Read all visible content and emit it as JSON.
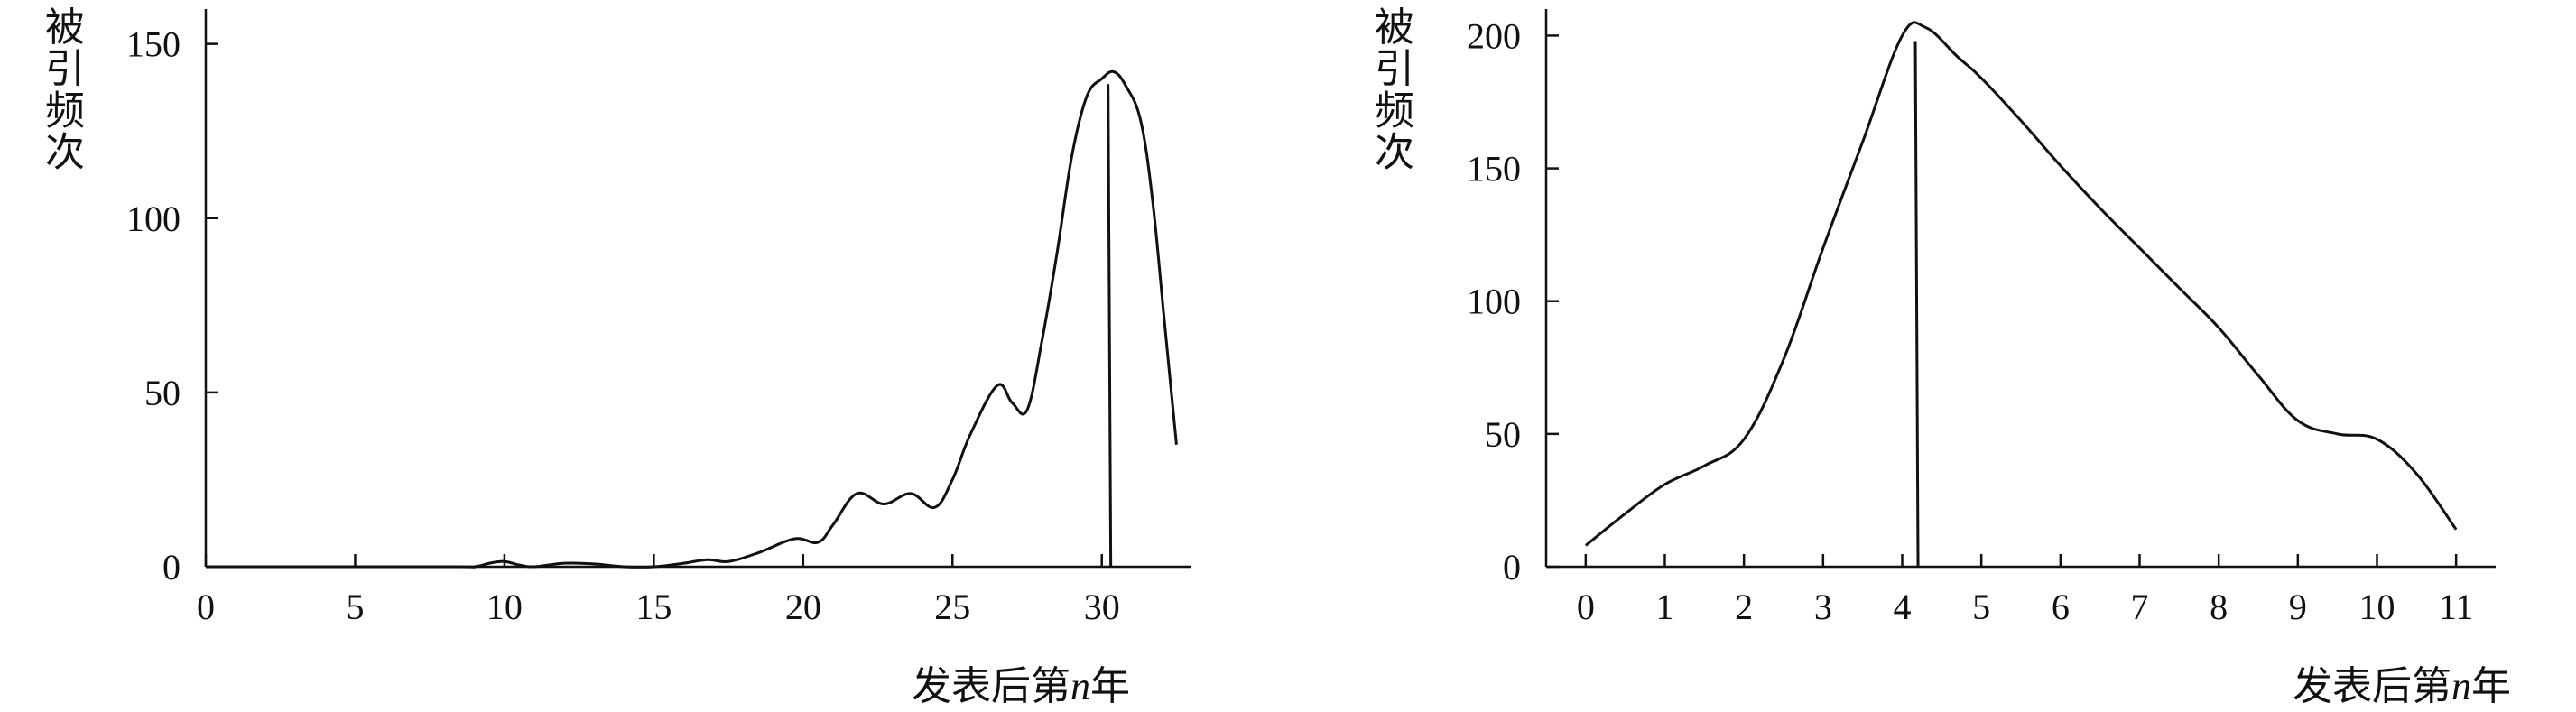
{
  "chart_data": [
    {
      "type": "line",
      "ylabel": "被引频次",
      "xlabel_prefix": "发表后第",
      "xlabel_var": "n",
      "xlabel_suffix": "年",
      "xlim": [
        0,
        33
      ],
      "ylim": [
        0,
        160
      ],
      "x_ticks": [
        0,
        5,
        10,
        15,
        20,
        25,
        30
      ],
      "y_ticks": [
        0,
        50,
        100,
        150
      ],
      "peak_marker_x": 30.3,
      "series": [
        {
          "x": [
            0,
            8,
            9,
            9.5,
            10,
            10.5,
            11,
            12,
            13,
            14,
            15,
            16,
            16.8,
            17.5,
            18.5,
            19.7,
            20.5,
            21,
            21.8,
            22.7,
            23.6,
            24.4,
            25,
            25.6,
            26.5,
            27,
            27.5,
            28,
            28.5,
            29,
            29.5,
            30,
            30.4,
            30.8,
            31.3,
            31.7,
            32.1,
            32.5
          ],
          "y": [
            0,
            0,
            0,
            1,
            1.5,
            0.5,
            0,
            1,
            0.8,
            0,
            0,
            1,
            2,
            1.5,
            4,
            8,
            7,
            12,
            21,
            18,
            21,
            17,
            25,
            38,
            52,
            47,
            45,
            65,
            90,
            118,
            135,
            140,
            142,
            138,
            128,
            105,
            70,
            35
          ]
        }
      ]
    },
    {
      "type": "line",
      "ylabel": "被引频次",
      "xlabel_prefix": "发表后第",
      "xlabel_var": "n",
      "xlabel_suffix": "年",
      "xlim": [
        -0.5,
        11.5
      ],
      "ylim": [
        0,
        210
      ],
      "x_ticks": [
        0,
        1,
        2,
        3,
        4,
        5,
        6,
        7,
        8,
        9,
        10,
        11
      ],
      "y_ticks": [
        0,
        50,
        100,
        150,
        200
      ],
      "peak_marker_x": 4.2,
      "series": [
        {
          "x": [
            0,
            0.5,
            1,
            1.5,
            2,
            2.5,
            3,
            3.5,
            4,
            4.3,
            4.7,
            5,
            5.5,
            6,
            6.5,
            7,
            7.5,
            8,
            8.5,
            9,
            9.5,
            10,
            10.5,
            11
          ],
          "y": [
            8,
            20,
            31,
            38,
            48,
            78,
            120,
            160,
            200,
            203,
            192,
            184,
            168,
            151,
            135,
            120,
            105,
            90,
            72,
            55,
            50,
            48,
            35,
            14
          ]
        }
      ]
    }
  ]
}
